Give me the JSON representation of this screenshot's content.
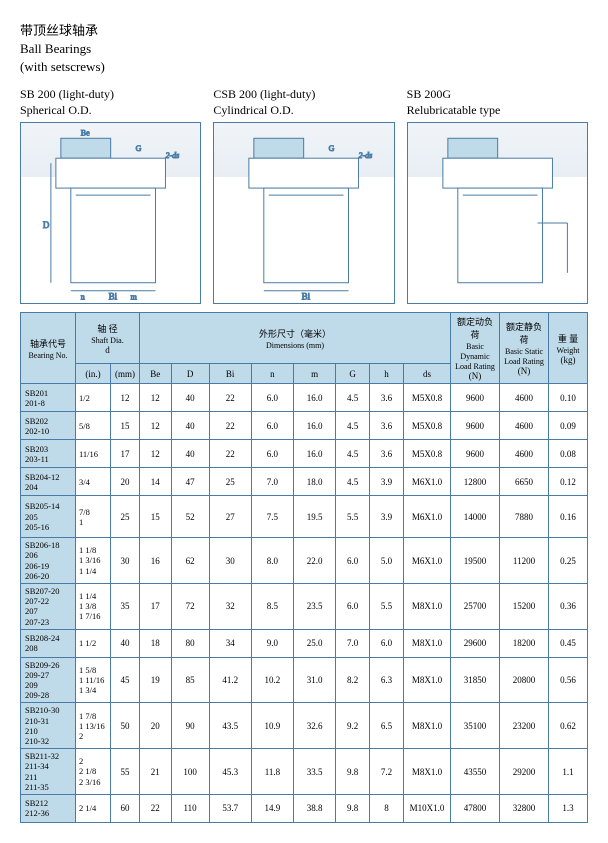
{
  "titles": {
    "cn": "带顶丝球轴承",
    "en1": "Ball Bearings",
    "en2": "(with setscrews)"
  },
  "diagrams": [
    {
      "t1": "SB 200 (light-duty)",
      "t2": "Spherical O.D."
    },
    {
      "t1": "CSB 200 (light-duty)",
      "t2": "Cylindrical O.D."
    },
    {
      "t1": "SB 200G",
      "t2": "Relubricatable type"
    }
  ],
  "headers": {
    "bearing_cn": "轴承代号",
    "bearing_en": "Bearing No.",
    "shaft_cn": "轴 径",
    "shaft_en": "Shaft Dia.",
    "shaft_d": "d",
    "in": "(in.)",
    "mm": "(mm)",
    "dim_cn": "外形尺寸（毫米）",
    "dim_en": "Dimensions (mm)",
    "Be": "Be",
    "D": "D",
    "Bi": "Bi",
    "n": "n",
    "m": "m",
    "G": "G",
    "h": "h",
    "ds": "ds",
    "dyn_cn": "额定动负荷",
    "dyn_en": "Basic Dynamic Load Rating",
    "dyn_n": "(N)",
    "stat_cn": "额定静负荷",
    "stat_en": "Basic Static Load Rating",
    "stat_n": "(N)",
    "wt_cn": "重 量",
    "wt_en": "Weight",
    "wt_kg": "(kg)"
  },
  "rows": [
    {
      "no": "SB201\n201-8",
      "in": "1/2",
      "mm": "12",
      "Be": "12",
      "D": "40",
      "Bi": "22",
      "n": "6.0",
      "m": "16.0",
      "G": "4.5",
      "h": "3.6",
      "ds": "M5X0.8",
      "dyn": "9600",
      "stat": "4600",
      "wt": "0.10"
    },
    {
      "no": "SB202\n202-10",
      "in": "5/8",
      "mm": "15",
      "Be": "12",
      "D": "40",
      "Bi": "22",
      "n": "6.0",
      "m": "16.0",
      "G": "4.5",
      "h": "3.6",
      "ds": "M5X0.8",
      "dyn": "9600",
      "stat": "4600",
      "wt": "0.09"
    },
    {
      "no": "SB203\n203-11",
      "in": "11/16",
      "mm": "17",
      "Be": "12",
      "D": "40",
      "Bi": "22",
      "n": "6.0",
      "m": "16.0",
      "G": "4.5",
      "h": "3.6",
      "ds": "M5X0.8",
      "dyn": "9600",
      "stat": "4600",
      "wt": "0.08"
    },
    {
      "no": "SB204-12\n204",
      "in": "3/4",
      "mm": "20",
      "Be": "14",
      "D": "47",
      "Bi": "25",
      "n": "7.0",
      "m": "18.0",
      "G": "4.5",
      "h": "3.9",
      "ds": "M6X1.0",
      "dyn": "12800",
      "stat": "6650",
      "wt": "0.12"
    },
    {
      "no": "SB205-14\n205\n205-16",
      "in": "7/8\n1",
      "mm": "25",
      "Be": "15",
      "D": "52",
      "Bi": "27",
      "n": "7.5",
      "m": "19.5",
      "G": "5.5",
      "h": "3.9",
      "ds": "M6X1.0",
      "dyn": "14000",
      "stat": "7880",
      "wt": "0.16",
      "tall": true
    },
    {
      "no": "SB206-18\n206\n206-19\n206-20",
      "in": "1 1/8\n1 3/16\n1 1/4",
      "mm": "30",
      "Be": "16",
      "D": "62",
      "Bi": "30",
      "n": "8.0",
      "m": "22.0",
      "G": "6.0",
      "h": "5.0",
      "ds": "M6X1.0",
      "dyn": "19500",
      "stat": "11200",
      "wt": "0.25",
      "tall": true
    },
    {
      "no": "SB207-20\n207-22\n207\n207-23",
      "in": "1 1/4\n1 3/8\n1 7/16",
      "mm": "35",
      "Be": "17",
      "D": "72",
      "Bi": "32",
      "n": "8.5",
      "m": "23.5",
      "G": "6.0",
      "h": "5.5",
      "ds": "M8X1.0",
      "dyn": "25700",
      "stat": "15200",
      "wt": "0.36",
      "tall": true
    },
    {
      "no": "SB208-24\n208",
      "in": "1 1/2",
      "mm": "40",
      "Be": "18",
      "D": "80",
      "Bi": "34",
      "n": "9.0",
      "m": "25.0",
      "G": "7.0",
      "h": "6.0",
      "ds": "M8X1.0",
      "dyn": "29600",
      "stat": "18200",
      "wt": "0.45"
    },
    {
      "no": "SB209-26\n209-27\n209\n209-28",
      "in": "1 5/8\n1 11/16\n1 3/4",
      "mm": "45",
      "Be": "19",
      "D": "85",
      "Bi": "41.2",
      "n": "10.2",
      "m": "31.0",
      "G": "8.2",
      "h": "6.3",
      "ds": "M8X1.0",
      "dyn": "31850",
      "stat": "20800",
      "wt": "0.56",
      "tall": true
    },
    {
      "no": "SB210-30\n210-31\n210\n210-32",
      "in": "1 7/8\n1 13/16\n2",
      "mm": "50",
      "Be": "20",
      "D": "90",
      "Bi": "43.5",
      "n": "10.9",
      "m": "32.6",
      "G": "9.2",
      "h": "6.5",
      "ds": "M8X1.0",
      "dyn": "35100",
      "stat": "23200",
      "wt": "0.62",
      "tall": true
    },
    {
      "no": "SB211-32\n211-34\n211\n211-35",
      "in": "2\n2 1/8\n2 3/16",
      "mm": "55",
      "Be": "21",
      "D": "100",
      "Bi": "45.3",
      "n": "11.8",
      "m": "33.5",
      "G": "9.8",
      "h": "7.2",
      "ds": "M8X1.0",
      "dyn": "43550",
      "stat": "29200",
      "wt": "1.1",
      "tall": true
    },
    {
      "no": "SB212\n212-36",
      "in": "2 1/4",
      "mm": "60",
      "Be": "22",
      "D": "110",
      "Bi": "53.7",
      "n": "14.9",
      "m": "38.8",
      "G": "9.8",
      "h": "8",
      "ds": "M10X1.0",
      "dyn": "47800",
      "stat": "32800",
      "wt": "1.3"
    }
  ],
  "diagram_style": {
    "stroke": "#4a7ba6",
    "hatch": "#7ba0c4"
  }
}
